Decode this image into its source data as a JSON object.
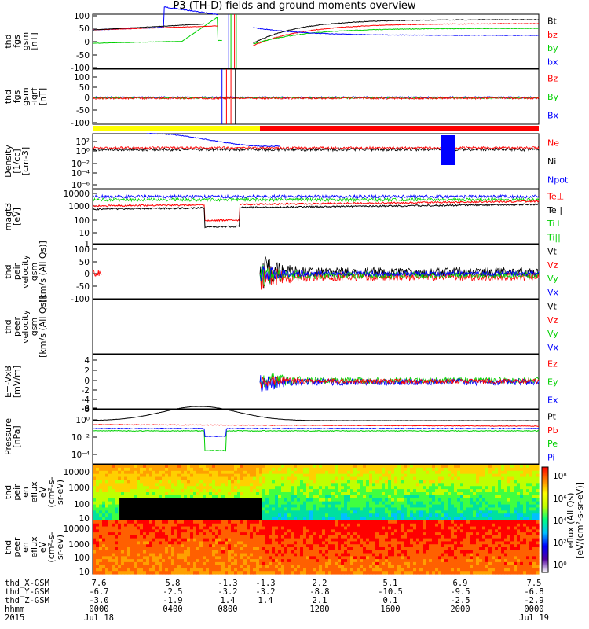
{
  "title": "P3 (TH-D) fields and ground moments overview",
  "colors": {
    "black": "#000000",
    "red": "#ff0000",
    "green": "#00d000",
    "blue": "#0000ff",
    "yellow": "#ffff00"
  },
  "chart_data": [
    {
      "type": "line",
      "id": "p1",
      "ylabel": [
        "thd",
        "fgs",
        "gsm",
        "[nT]"
      ],
      "ylim": [
        -100,
        100
      ],
      "yticks": [
        "100",
        "50",
        "0",
        "-50",
        "-100"
      ],
      "series": [
        {
          "name": "Bt",
          "color": "#000000"
        },
        {
          "name": "bz",
          "color": "#ff0000"
        },
        {
          "name": "by",
          "color": "#00d000"
        },
        {
          "name": "bx",
          "color": "#0000ff"
        }
      ]
    },
    {
      "type": "line",
      "id": "p2",
      "ylabel": [
        "thd",
        "fgs",
        "gsm",
        "-igrf",
        "[nT]"
      ],
      "ylim": [
        -120,
        120
      ],
      "yticks": [
        "100",
        "50",
        "0",
        "-50",
        "-100"
      ],
      "series": [
        {
          "name": "Bz",
          "color": "#ff0000"
        },
        {
          "name": "By",
          "color": "#00d000"
        },
        {
          "name": "Bx",
          "color": "#0000ff"
        }
      ]
    },
    {
      "type": "line",
      "id": "p3",
      "ylabel": [
        "Density",
        "[1/cc]",
        "[cm-3]"
      ],
      "yticks": [
        "10²",
        "10⁰",
        "10⁻²",
        "10⁻⁴",
        "10⁻⁶"
      ],
      "series": [
        {
          "name": "Ne",
          "color": "#ff0000"
        },
        {
          "name": "Ni",
          "color": "#000000"
        },
        {
          "name": "Npot",
          "color": "#0000ff"
        }
      ]
    },
    {
      "type": "line",
      "id": "p4",
      "ylabel": [
        "magt3",
        "[eV]"
      ],
      "yticks": [
        "10000",
        "1000",
        "100",
        "10",
        "1"
      ],
      "series": [
        {
          "name": "Te⊥",
          "color": "#ff0000"
        },
        {
          "name": "Te||",
          "color": "#000000"
        },
        {
          "name": "Ti⊥",
          "color": "#00d000"
        },
        {
          "name": "Ti||",
          "color": "#00d000"
        }
      ]
    },
    {
      "type": "line",
      "id": "p5",
      "ylabel": [
        "thd",
        "peir",
        "velocity",
        "gsm",
        "[km/s (All Qs)]"
      ],
      "ylim": [
        -100,
        100
      ],
      "yticks": [
        "100",
        "50",
        "0",
        "-50",
        "-100"
      ],
      "series": [
        {
          "name": "Vt",
          "color": "#000000"
        },
        {
          "name": "Vz",
          "color": "#ff0000"
        },
        {
          "name": "Vy",
          "color": "#00d000"
        },
        {
          "name": "Vx",
          "color": "#0000ff"
        }
      ]
    },
    {
      "type": "line",
      "id": "p6",
      "ylabel": [
        "thd",
        "peer",
        "velocity",
        "gsm",
        "[km/s (All Qs)]"
      ],
      "yticks": [],
      "series": [
        {
          "name": "Vt",
          "color": "#000000"
        },
        {
          "name": "Vz",
          "color": "#ff0000"
        },
        {
          "name": "Vy",
          "color": "#00d000"
        },
        {
          "name": "Vx",
          "color": "#0000ff"
        }
      ]
    },
    {
      "type": "line",
      "id": "p7",
      "ylabel": [
        "E=-VxB",
        "[mV/m]"
      ],
      "ylim": [
        -9,
        5
      ],
      "yticks": [
        "4",
        "2",
        "0",
        "-2",
        "-4",
        "-6",
        "-8"
      ],
      "series": [
        {
          "name": "Ez",
          "color": "#ff0000"
        },
        {
          "name": "Ey",
          "color": "#00d000"
        },
        {
          "name": "Ex",
          "color": "#0000ff"
        }
      ]
    },
    {
      "type": "line",
      "id": "p8",
      "ylabel": [
        "Pressure",
        "[nPa]"
      ],
      "yticks": [
        "10⁰",
        "10⁻²",
        "10⁻⁴"
      ],
      "series": [
        {
          "name": "Pt",
          "color": "#000000"
        },
        {
          "name": "Pb",
          "color": "#ff0000"
        },
        {
          "name": "Pe",
          "color": "#00d000"
        },
        {
          "name": "Pi",
          "color": "#0000ff"
        }
      ]
    },
    {
      "type": "heatmap",
      "id": "p9",
      "ylabel": [
        "thd",
        "peir",
        "en",
        "eflux",
        "eV",
        "(cm²-s-",
        "sr-eV)"
      ],
      "yticks": [
        "10000",
        "1000",
        "100",
        "10"
      ]
    },
    {
      "type": "heatmap",
      "id": "p10",
      "ylabel": [
        "thd",
        "peer",
        "en",
        "eflux",
        "eV",
        "(cm²-s-",
        "sr-eV)"
      ],
      "yticks": [
        "10000",
        "1000",
        "100",
        "10"
      ]
    }
  ],
  "colorbar": {
    "label": "[eV/(cm²-s-sr-eV)]",
    "sublabel": "eflux (All Qs)",
    "ticks": [
      "10⁸",
      "10⁶",
      "10⁴",
      "10²",
      "10⁰"
    ]
  },
  "xaxis": {
    "rows": [
      {
        "name": "thd_X-GSM",
        "values": [
          "7.6",
          "5.8",
          "-1.3",
          "-1.3",
          "2.2",
          "5.1",
          "6.9",
          "7.5"
        ]
      },
      {
        "name": "thd_Y-GSM",
        "values": [
          "-6.7",
          "-2.5",
          "-3.2",
          "-3.2",
          "-8.8",
          "-10.5",
          "-9.5",
          "-6.8"
        ]
      },
      {
        "name": "thd_Z-GSM",
        "values": [
          "-3.0",
          "-1.9",
          "1.4",
          "1.4",
          "2.1",
          "0.1",
          "-2.5",
          "-2.9"
        ]
      },
      {
        "name": "hhmm",
        "values": [
          "0000",
          "0400",
          "0800",
          "",
          "1200",
          "1600",
          "2000",
          "0000"
        ]
      },
      {
        "name": "2015",
        "values": [
          "Jul 18",
          "",
          "",
          "",
          "",
          "",
          "",
          "Jul 19"
        ]
      }
    ]
  }
}
